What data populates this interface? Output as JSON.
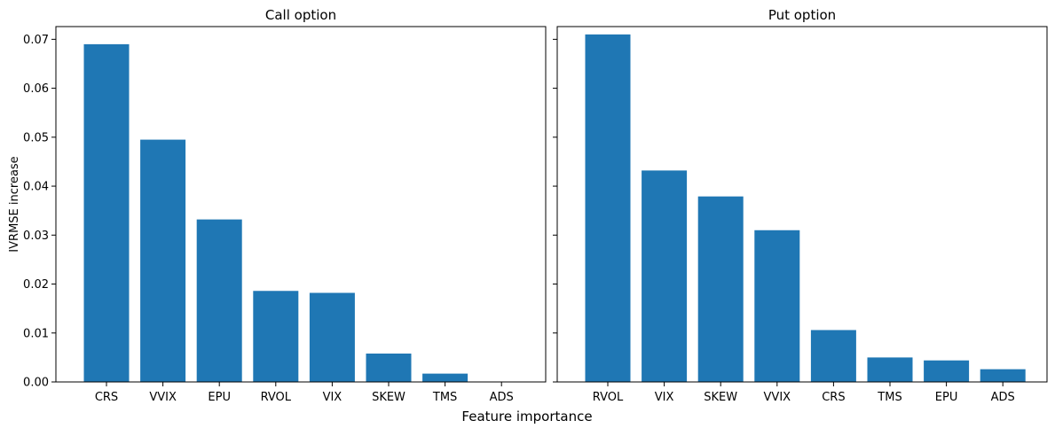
{
  "figure": {
    "shared_xlabel": "Feature importance"
  },
  "chart_data": [
    {
      "type": "bar",
      "title": "Call option",
      "xlabel": "",
      "ylabel": "IVRMSE increase",
      "categories": [
        "CRS",
        "VVIX",
        "EPU",
        "RVOL",
        "VIX",
        "SKEW",
        "TMS",
        "ADS"
      ],
      "values": [
        0.069,
        0.0495,
        0.0332,
        0.0186,
        0.0182,
        0.0058,
        0.0017,
        0.0
      ],
      "ylim": [
        0,
        0.0726
      ],
      "yticks": [
        0.0,
        0.01,
        0.02,
        0.03,
        0.04,
        0.05,
        0.06,
        0.07
      ],
      "ytick_labels": [
        "0.00",
        "0.01",
        "0.02",
        "0.03",
        "0.04",
        "0.05",
        "0.06",
        "0.07"
      ],
      "show_ytick_labels": true,
      "bar_color": "#1f77b4",
      "grid": false
    },
    {
      "type": "bar",
      "title": "Put option",
      "xlabel": "",
      "ylabel": "",
      "categories": [
        "RVOL",
        "VIX",
        "SKEW",
        "VVIX",
        "CRS",
        "TMS",
        "EPU",
        "ADS"
      ],
      "values": [
        0.071,
        0.0432,
        0.0379,
        0.031,
        0.0106,
        0.005,
        0.0044,
        0.0026
      ],
      "ylim": [
        0,
        0.0726
      ],
      "yticks": [
        0.0,
        0.01,
        0.02,
        0.03,
        0.04,
        0.05,
        0.06,
        0.07
      ],
      "ytick_labels": [
        "0.00",
        "0.01",
        "0.02",
        "0.03",
        "0.04",
        "0.05",
        "0.06",
        "0.07"
      ],
      "show_ytick_labels": false,
      "bar_color": "#1f77b4",
      "grid": false
    }
  ]
}
